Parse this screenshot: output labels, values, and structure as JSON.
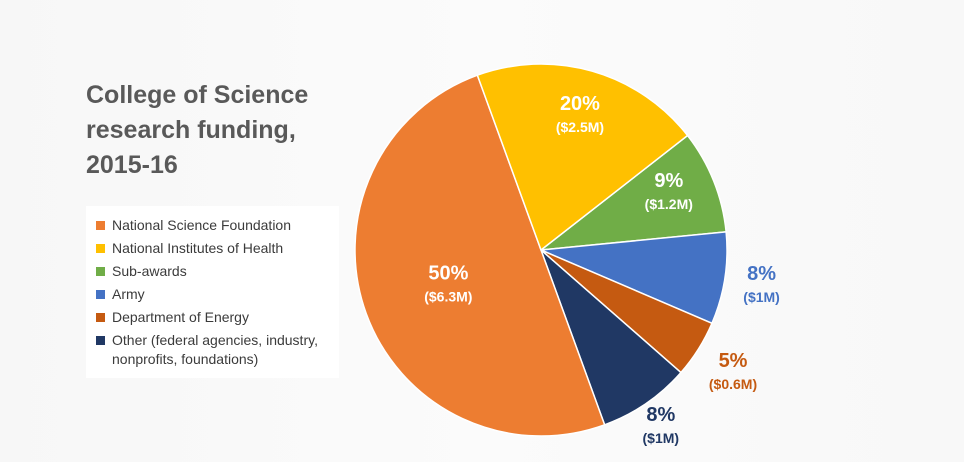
{
  "chart_data": {
    "type": "pie",
    "title": [
      "College of Science",
      "research funding,",
      "2015-16"
    ],
    "legend_position": "left",
    "slices": [
      {
        "name": "Sub-awards",
        "legend": "Sub-awards",
        "percent": 9,
        "value": 1.2,
        "pct_label": "9%",
        "amt_label": "($1.2M)",
        "color": "#70ad47",
        "label_color": "#ffffff"
      },
      {
        "name": "Army",
        "legend": "Army",
        "percent": 8,
        "value": 1.0,
        "pct_label": "8%",
        "amt_label": "($1M)",
        "color": "#4472c4",
        "label_color": "#4472c4"
      },
      {
        "name": "Department of Energy",
        "legend": "Department of Energy",
        "percent": 5,
        "value": 0.6,
        "pct_label": "5%",
        "amt_label": "($0.6M)",
        "color": "#c55a11",
        "label_color": "#c55a11"
      },
      {
        "name": "Other",
        "legend": [
          "Other (federal agencies, industry,",
          "nonprofits, foundations)"
        ],
        "percent": 8,
        "value": 1.0,
        "pct_label": "8%",
        "amt_label": "($1M)",
        "color": "#203864",
        "label_color": "#203864"
      },
      {
        "name": "National Science Foundation",
        "legend": "National Science Foundation",
        "percent": 50,
        "value": 6.3,
        "pct_label": "50%",
        "amt_label": "($6.3M)",
        "color": "#ed7d31",
        "label_color": "#ffffff"
      },
      {
        "name": "National Institutes of Health",
        "legend": "National Institutes of Health",
        "percent": 20,
        "value": 2.5,
        "pct_label": "20%",
        "amt_label": "($2.5M)",
        "color": "#ffc000",
        "label_color": "#ffffff"
      }
    ],
    "legend_order": [
      "National Science Foundation",
      "National Institutes of Health",
      "Sub-awards",
      "Army",
      "Department of Energy",
      "Other"
    ]
  }
}
